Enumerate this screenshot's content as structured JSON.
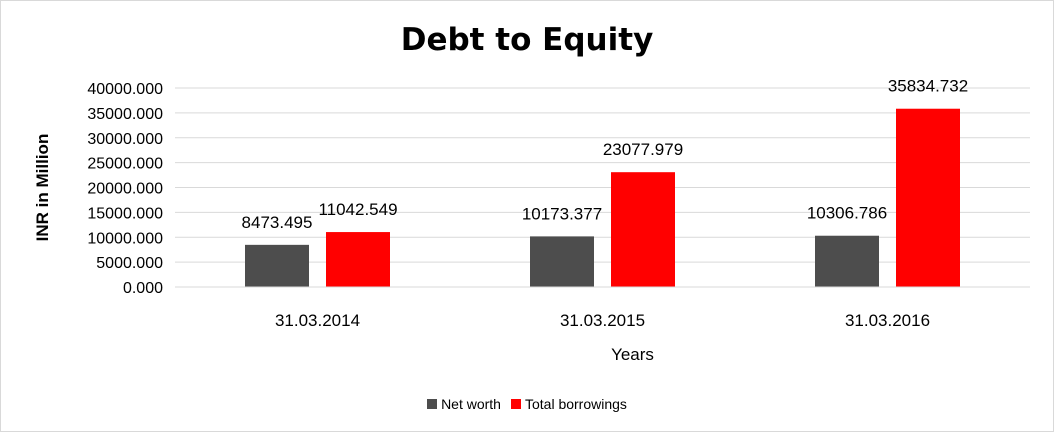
{
  "chart_data": {
    "type": "bar",
    "title": "Debt to Equity",
    "xlabel": "Years",
    "ylabel": "INR in Million",
    "categories": [
      "31.03.2014",
      "31.03.2015",
      "31.03.2016"
    ],
    "series": [
      {
        "name": "Net worth",
        "color": "#4d4d4d",
        "values": [
          8473.495,
          10173.377,
          10306.786
        ],
        "labels": [
          "8473.495",
          "10173.377",
          "10306.786"
        ]
      },
      {
        "name": "Total borrowings",
        "color": "#ff0000",
        "values": [
          11042.549,
          23077.979,
          35834.732
        ],
        "labels": [
          "11042.549",
          "23077.979",
          "35834.732"
        ]
      }
    ],
    "ylim": [
      0,
      40000
    ],
    "yticks": [
      "0.000",
      "5000.000",
      "10000.000",
      "15000.000",
      "20000.000",
      "25000.000",
      "30000.000",
      "35000.000",
      "40000.000"
    ],
    "grid": true,
    "legend_position": "bottom"
  }
}
